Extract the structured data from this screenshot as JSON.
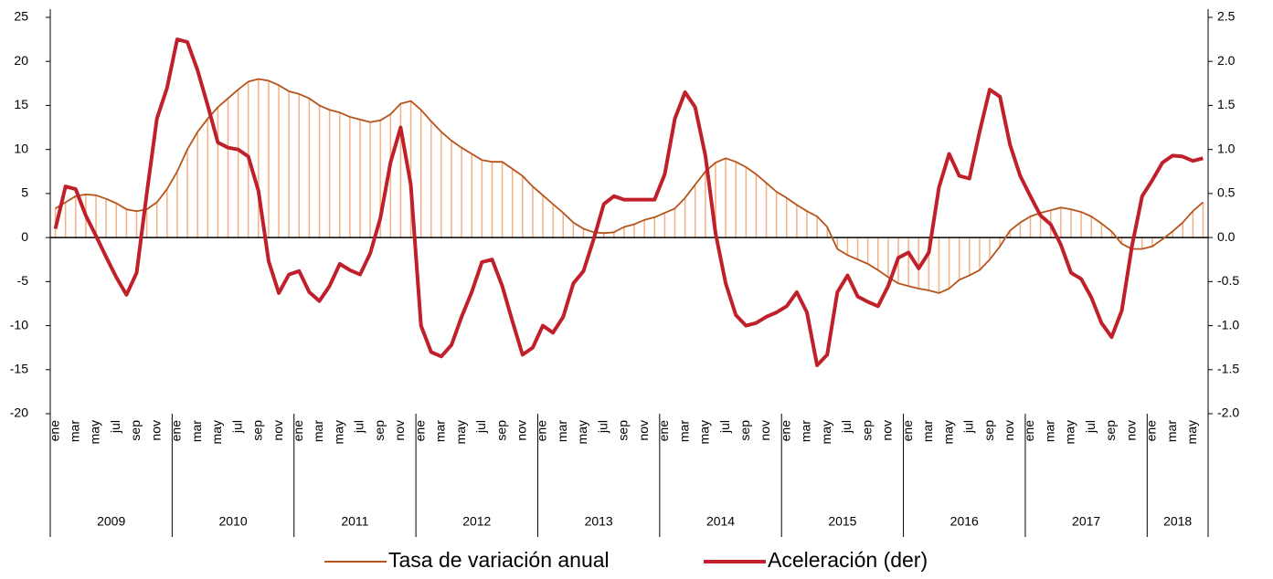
{
  "chart_data": {
    "type": "bar-line",
    "categories": [
      "ene",
      null,
      "mar",
      null,
      "may",
      null,
      "jul",
      null,
      "sep",
      null,
      "nov",
      null,
      "ene",
      null,
      "mar",
      null,
      "may",
      null,
      "jul",
      null,
      "sep",
      null,
      "nov",
      null,
      "ene",
      null,
      "mar",
      null,
      "may",
      null,
      "jul",
      null,
      "sep",
      null,
      "nov",
      null,
      "ene",
      null,
      "mar",
      null,
      "may",
      null,
      "jul",
      null,
      "sep",
      null,
      "nov",
      null,
      "ene",
      null,
      "mar",
      null,
      "may",
      null,
      "jul",
      null,
      "sep",
      null,
      "nov",
      null,
      "ene",
      null,
      "mar",
      null,
      "may",
      null,
      "jul",
      null,
      "sep",
      null,
      "nov",
      null,
      "ene",
      null,
      "mar",
      null,
      "may",
      null,
      "jul",
      null,
      "sep",
      null,
      "nov",
      null,
      "ene",
      null,
      "mar",
      null,
      "may",
      null,
      "jul",
      null,
      "sep",
      null,
      "nov",
      null,
      "ene",
      null,
      "mar",
      null,
      "may",
      null,
      "jul",
      null,
      "sep",
      null,
      "nov",
      null,
      "ene",
      null,
      "mar",
      null,
      "may",
      null
    ],
    "years": [
      "2009",
      "2010",
      "2011",
      "2012",
      "2013",
      "2014",
      "2015",
      "2016",
      "2017",
      "2018"
    ],
    "series": [
      {
        "name": "Tasa de variación anual",
        "color": "#b5541b",
        "bar_color": "#f4b183",
        "axis": "y",
        "values": [
          3.3,
          4,
          4.7,
          4.9,
          4.8,
          4.4,
          3.9,
          3.2,
          3,
          3.2,
          4,
          5.5,
          7.5,
          10,
          12,
          13.5,
          14.8,
          15.8,
          16.8,
          17.7,
          18,
          17.8,
          17.3,
          16.6,
          16.3,
          15.8,
          15,
          14.5,
          14.2,
          13.7,
          13.4,
          13.1,
          13.3,
          14,
          15.2,
          15.5,
          14.5,
          13.2,
          12,
          11,
          10.2,
          9.5,
          8.8,
          8.6,
          8.6,
          7.8,
          7,
          5.8,
          4.8,
          3.8,
          2.8,
          1.7,
          1,
          0.6,
          0.5,
          0.6,
          1.2,
          1.5,
          2,
          2.3,
          2.8,
          3.3,
          4.5,
          6,
          7.5,
          8.5,
          9,
          8.6,
          8,
          7.2,
          6.2,
          5.2,
          4.5,
          3.7,
          3,
          2.4,
          1.2,
          -1.3,
          -2,
          -2.5,
          -3,
          -3.7,
          -4.5,
          -5.2,
          -5.5,
          -5.8,
          -6,
          -6.3,
          -5.8,
          -4.8,
          -4.3,
          -3.7,
          -2.5,
          -1,
          0.8,
          1.7,
          2.4,
          2.8,
          3.1,
          3.4,
          3.2,
          2.9,
          2.4,
          1.6,
          0.7,
          -0.7,
          -1.3,
          -1.3,
          -1,
          -0.2,
          0.7,
          1.7,
          3,
          4
        ]
      },
      {
        "name": "Aceleración (der)",
        "color": "#c0202a",
        "axis": "y2",
        "values": [
          0.1,
          0.58,
          0.55,
          0.25,
          0.02,
          -0.22,
          -0.45,
          -0.65,
          -0.4,
          0.5,
          1.35,
          1.7,
          2.25,
          2.22,
          1.9,
          1.5,
          1.08,
          1.02,
          1,
          0.92,
          0.53,
          -0.27,
          -0.63,
          -0.42,
          -0.38,
          -0.62,
          -0.72,
          -0.55,
          -0.3,
          -0.37,
          -0.42,
          -0.18,
          0.22,
          0.85,
          1.25,
          0.6,
          -1,
          -1.3,
          -1.35,
          -1.22,
          -0.9,
          -0.62,
          -0.28,
          -0.25,
          -0.55,
          -0.95,
          -1.33,
          -1.25,
          -1,
          -1.08,
          -0.9,
          -0.52,
          -0.38,
          -0.02,
          0.38,
          0.47,
          0.43,
          0.43,
          0.43,
          0.43,
          0.72,
          1.35,
          1.65,
          1.48,
          0.93,
          0.05,
          -0.52,
          -0.88,
          -1,
          -0.97,
          -0.9,
          -0.85,
          -0.78,
          -0.62,
          -0.85,
          -1.45,
          -1.33,
          -0.62,
          -0.43,
          -0.67,
          -0.73,
          -0.78,
          -0.55,
          -0.23,
          -0.17,
          -0.35,
          -0.17,
          0.57,
          0.95,
          0.7,
          0.67,
          1.2,
          1.68,
          1.6,
          1.05,
          0.7,
          0.47,
          0.25,
          0.15,
          -0.08,
          -0.4,
          -0.47,
          -0.68,
          -0.97,
          -1.13,
          -0.83,
          -0.1,
          0.47,
          0.65,
          0.85,
          0.93,
          0.92,
          0.87,
          0.9
        ]
      }
    ],
    "ylim": [
      -20,
      25
    ],
    "yticks": [
      -20,
      -15,
      -10,
      -5,
      0,
      5,
      10,
      15,
      20,
      25
    ],
    "y2lim": [
      -2,
      2.5
    ],
    "y2ticks": [
      {
        "value": -2,
        "label": "-2.0"
      },
      -1.5,
      {
        "value": -1,
        "label": "-1.0"
      },
      -0.5,
      {
        "value": 0,
        "label": "0.0"
      },
      0.5,
      {
        "value": 1,
        "label": "1.0"
      },
      1.5,
      {
        "value": 2,
        "label": "2.0"
      },
      2.5
    ],
    "legend": "bottom"
  }
}
